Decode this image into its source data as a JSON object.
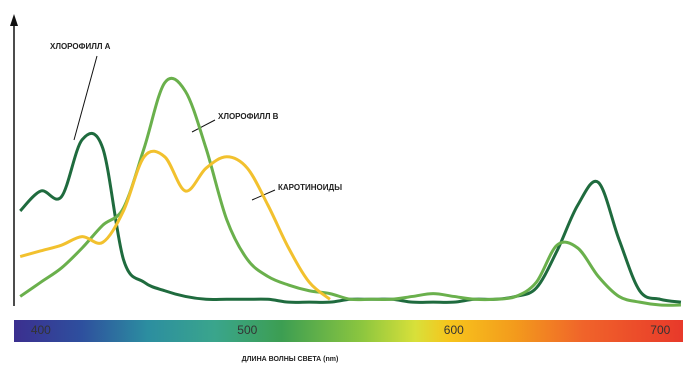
{
  "chart_data": {
    "type": "line",
    "xlabel": "ДЛИНА ВОЛНЫ СВЕТА (nm)",
    "x": [
      390,
      400,
      410,
      420,
      430,
      440,
      450,
      460,
      470,
      480,
      490,
      500,
      510,
      520,
      530,
      540,
      550,
      560,
      570,
      580,
      590,
      600,
      610,
      620,
      630,
      640,
      650,
      660,
      670,
      680,
      690,
      700,
      710
    ],
    "series": [
      {
        "name": "ХЛОРОФИЛЛ А",
        "color": "#1f6b3e",
        "values": [
          33,
          40,
          38,
          58,
          55,
          16,
          8,
          5,
          3,
          2,
          2,
          2,
          2,
          1,
          1,
          1,
          2,
          2,
          2,
          1,
          1,
          1,
          2,
          2,
          3,
          6,
          19,
          35,
          43,
          23,
          5,
          2,
          1
        ]
      },
      {
        "name": "ХЛОРОФИЛЛ В",
        "color": "#6ab04c",
        "values": [
          3,
          8,
          13,
          20,
          28,
          34,
          55,
          78,
          75,
          55,
          30,
          16,
          10,
          7,
          5,
          4,
          2,
          2,
          2,
          3,
          4,
          3,
          2,
          2,
          3,
          8,
          21,
          20,
          10,
          3,
          1,
          0,
          0
        ]
      },
      {
        "name": "КАРОТИНОИДЫ",
        "color": "#f2c12e",
        "values": [
          17,
          19,
          21,
          24,
          22,
          33,
          52,
          52,
          40,
          48,
          52,
          48,
          35,
          20,
          8,
          2,
          null,
          null,
          null,
          null,
          null,
          null,
          null,
          null,
          null,
          null,
          null,
          null,
          null,
          null,
          null,
          null,
          null
        ]
      }
    ],
    "xlim": [
      387,
      711
    ],
    "ylim": [
      0,
      100
    ],
    "xticks": [
      400,
      500,
      600,
      700
    ]
  }
}
